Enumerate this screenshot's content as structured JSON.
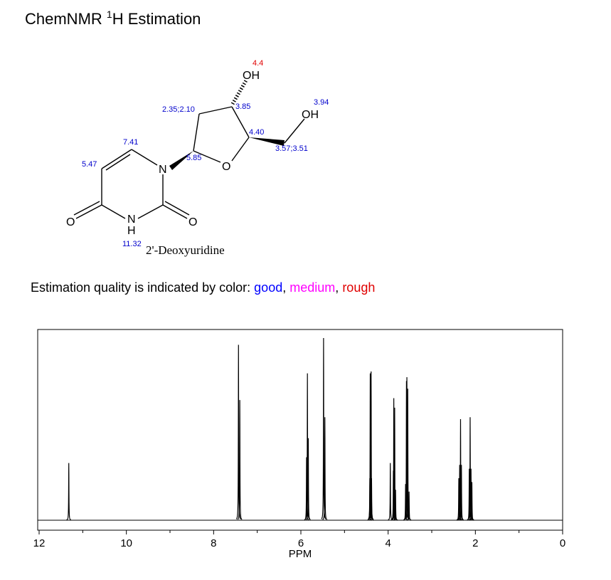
{
  "header": {
    "title": "ChemNMR ",
    "title_sup": "1",
    "title_end": "H Estimation"
  },
  "structure": {
    "name": "2'-Deoxyuridine",
    "atoms": [
      "OH",
      "OH",
      "O",
      "N",
      "O",
      "O",
      "N",
      "H"
    ],
    "shifts": [
      {
        "text": "4.4",
        "color": "#e00000"
      },
      {
        "text": "3.94",
        "color": "#0000cc"
      },
      {
        "text": "2.35;2.10",
        "color": "#0000cc"
      },
      {
        "text": "3.85",
        "color": "#0000cc"
      },
      {
        "text": "4.40",
        "color": "#0000cc"
      },
      {
        "text": "3.57;3.51",
        "color": "#0000cc"
      },
      {
        "text": "5.85",
        "color": "#0000cc"
      },
      {
        "text": "7.41",
        "color": "#0000cc"
      },
      {
        "text": "5.47",
        "color": "#0000cc"
      },
      {
        "text": "11.32",
        "color": "#0000cc"
      }
    ]
  },
  "legend": {
    "prefix": "Estimation quality is indicated by color:",
    "items": [
      {
        "label": "good",
        "color": "#0000ff"
      },
      {
        "label": "medium",
        "color": "#ff00ff"
      },
      {
        "label": "rough",
        "color": "#e00000"
      }
    ],
    "separator": ","
  },
  "chart_data": {
    "type": "peaks",
    "xlabel": "PPM",
    "color": "#000000",
    "x": [
      11.32,
      7.43,
      7.4,
      5.87,
      5.85,
      5.83,
      5.48,
      5.45,
      4.42,
      4.41,
      4.39,
      4.38,
      3.95,
      3.88,
      3.87,
      3.85,
      3.83,
      3.6,
      3.58,
      3.57,
      3.55,
      3.52,
      2.38,
      2.36,
      2.34,
      2.32,
      2.14,
      2.12,
      2.1,
      2.08
    ],
    "values": [
      0.3,
      0.92,
      0.63,
      0.33,
      0.77,
      0.43,
      0.955,
      0.54,
      0.22,
      0.77,
      0.78,
      0.22,
      0.3,
      0.26,
      0.64,
      0.59,
      0.16,
      0.19,
      0.73,
      0.75,
      0.69,
      0.15,
      0.22,
      0.29,
      0.53,
      0.29,
      0.27,
      0.54,
      0.27,
      0.2
    ],
    "xlim": [
      12,
      0
    ],
    "ylim": [
      0,
      1
    ],
    "xticks": [
      12,
      10,
      8,
      6,
      4,
      2,
      0
    ],
    "xminorticks": [
      11,
      9,
      7,
      5,
      3,
      1
    ]
  }
}
